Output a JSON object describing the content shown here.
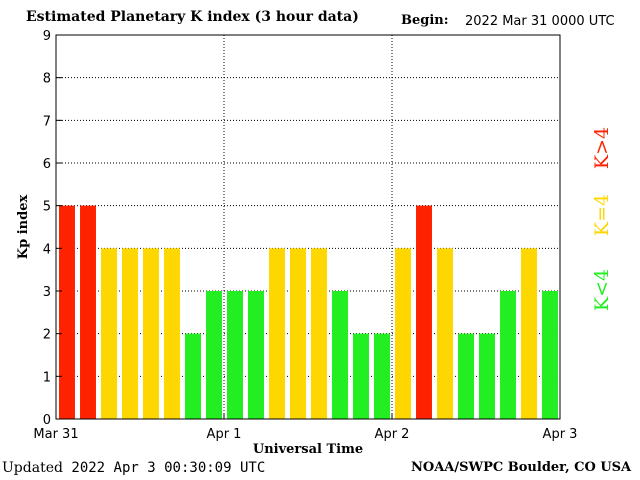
{
  "header": {
    "title": "Estimated Planetary K index (3 hour data)",
    "begin_label": "Begin:",
    "begin_value": "2022 Mar 31 0000 UTC"
  },
  "footer": {
    "updated_label": "Updated",
    "updated_value": "2022 Apr  3 00:30:09 UTC",
    "credit": "NOAA/SWPC Boulder, CO USA"
  },
  "colors": {
    "low": "#22ee22",
    "mid": "#ffd700",
    "high": "#ff2200"
  },
  "chart_data": {
    "type": "bar",
    "title": "Estimated Planetary K index (3 hour data)",
    "xlabel": "Universal Time",
    "ylabel": "Kp index",
    "ylim": [
      0,
      9
    ],
    "yticks": [
      0,
      1,
      2,
      3,
      4,
      5,
      6,
      7,
      8,
      9
    ],
    "x_ticks": [
      "Mar 31",
      "Apr 1",
      "Apr 2",
      "Apr 3"
    ],
    "grid": true,
    "values": [
      5,
      5,
      4,
      4,
      4,
      4,
      2,
      3,
      3,
      3,
      4,
      4,
      4,
      3,
      2,
      2,
      4,
      5,
      4,
      2,
      2,
      3,
      4,
      3
    ],
    "legend": [
      {
        "label": "K<4",
        "color_key": "low"
      },
      {
        "label": "K=4",
        "color_key": "mid"
      },
      {
        "label": "K>4",
        "color_key": "high"
      }
    ]
  }
}
